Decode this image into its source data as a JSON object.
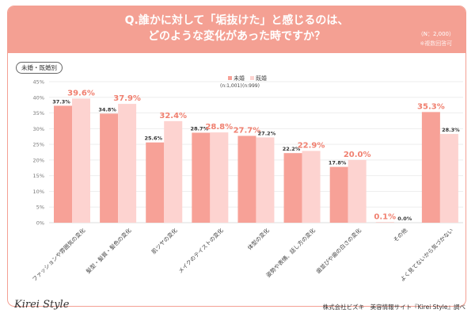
{
  "header": {
    "title_line1": "Q.誰かに対して「垢抜けた」と感じるのは、",
    "title_line2": "どのような変化があった時ですか？",
    "n": "（N：2,000）",
    "note": "※複数回答可"
  },
  "tag": "未婚・既婚別",
  "footer": {
    "logo": "Kirei Style",
    "credit": "株式会社ビズキ　美容情報サイト『Kirei Style』調べ"
  },
  "chart_data": {
    "type": "bar",
    "categories": [
      "ファッションや雰囲気の変化",
      "髪型・髪質・髪色の変化",
      "肌ツヤの変化",
      "メイクのテイストの変化",
      "体型の変化",
      "姿勢や表情、話し方の変化",
      "歯並びや歯の白さの変化",
      "その他",
      "よく見てないから気づかない"
    ],
    "series": [
      {
        "name": "未婚",
        "n_label": "(n:1,001)",
        "color": "#f7a197",
        "values": [
          37.3,
          34.8,
          25.6,
          28.7,
          27.7,
          22.2,
          17.8,
          0.1,
          35.3
        ]
      },
      {
        "name": "既婚",
        "n_label": "(n:999)",
        "color": "#fdd3d0",
        "values": [
          39.6,
          37.9,
          32.4,
          28.8,
          27.2,
          22.9,
          20.0,
          0.0,
          28.3
        ]
      }
    ],
    "yticks": [
      "0%",
      "5%",
      "10%",
      "15%",
      "20%",
      "25%",
      "30%",
      "35%",
      "40%",
      "45%"
    ],
    "ylim": [
      0,
      45
    ],
    "grid": true,
    "legend": "top-center",
    "highlight_color": "#f08070"
  }
}
